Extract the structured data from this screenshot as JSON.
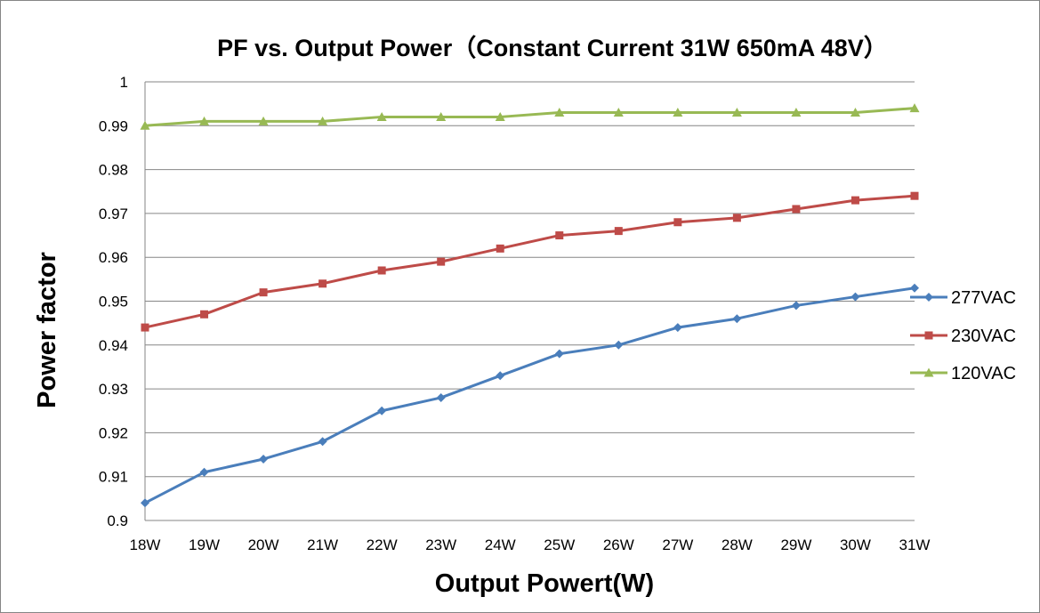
{
  "chart_data": {
    "type": "line",
    "title": "PF vs. Output Power（Constant Current 31W 650mA 48V）",
    "xlabel": "Output Powert(W)",
    "ylabel": "Power factor",
    "categories": [
      "18W",
      "19W",
      "20W",
      "21W",
      "22W",
      "23W",
      "24W",
      "25W",
      "26W",
      "27W",
      "28W",
      "29W",
      "30W",
      "31W"
    ],
    "ylim": [
      0.9,
      1
    ],
    "yticks": [
      "0.9",
      "0.91",
      "0.92",
      "0.93",
      "0.94",
      "0.95",
      "0.96",
      "0.97",
      "0.98",
      "0.99",
      "1"
    ],
    "grid": "horizontal",
    "legend_position": "right",
    "series": [
      {
        "name": "277VAC",
        "color": "#4a7ebb",
        "marker": "diamond",
        "values": [
          0.904,
          0.911,
          0.914,
          0.918,
          0.925,
          0.928,
          0.933,
          0.938,
          0.94,
          0.944,
          0.946,
          0.949,
          0.951,
          0.953
        ]
      },
      {
        "name": "230VAC",
        "color": "#be4b48",
        "marker": "square",
        "values": [
          0.944,
          0.947,
          0.952,
          0.954,
          0.957,
          0.959,
          0.962,
          0.965,
          0.966,
          0.968,
          0.969,
          0.971,
          0.973,
          0.974
        ]
      },
      {
        "name": "120VAC",
        "color": "#98b954",
        "marker": "triangle",
        "values": [
          0.99,
          0.991,
          0.991,
          0.991,
          0.992,
          0.992,
          0.992,
          0.993,
          0.993,
          0.993,
          0.993,
          0.993,
          0.993,
          0.994
        ]
      }
    ]
  }
}
